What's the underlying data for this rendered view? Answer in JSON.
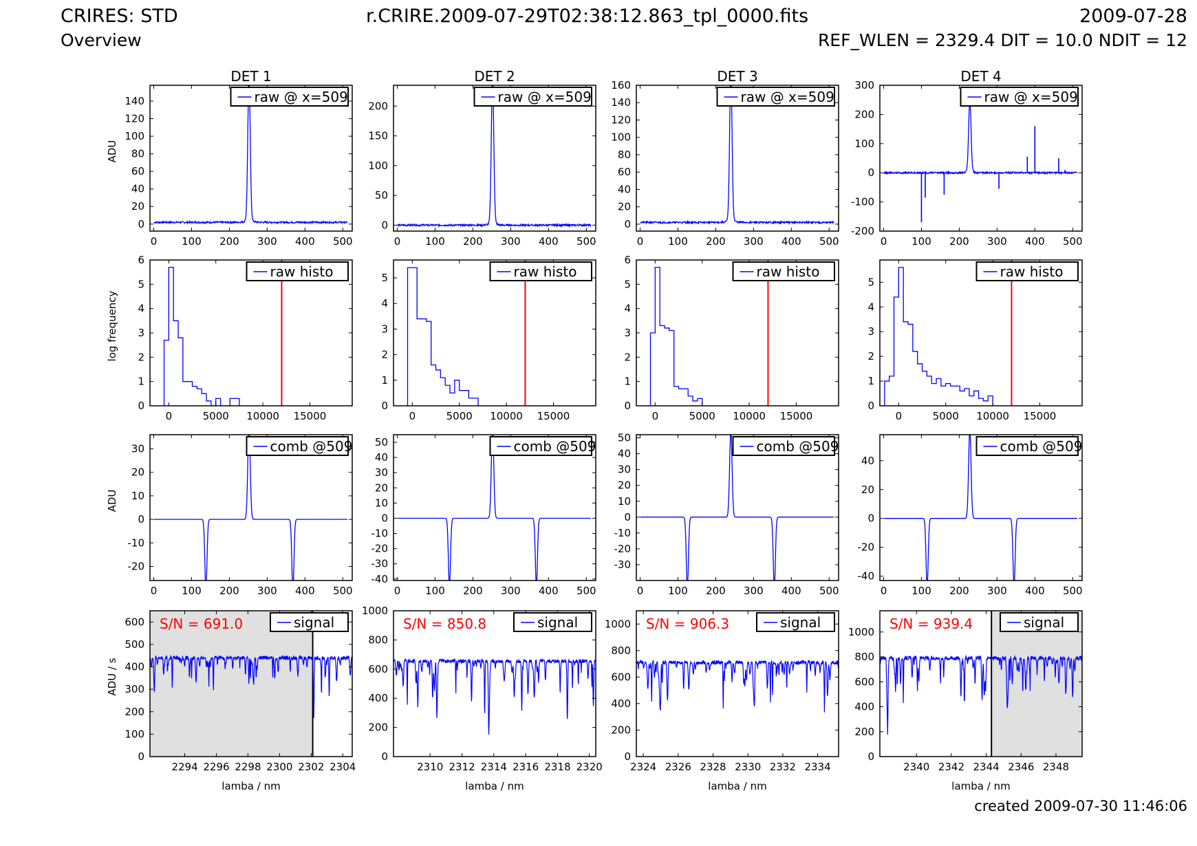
{
  "header": {
    "title": "CRIRES: STD",
    "subtitle": "Overview",
    "filename": "r.CRIRE.2009-07-29T02:38:12.863_tpl_0000.fits",
    "date": "2009-07-28",
    "params": "REF_WLEN = 2329.4 DIT = 10.0 NDIT = 12",
    "created": "created 2009-07-30 11:46:06"
  },
  "colors": {
    "series": "#0000ff",
    "marker": "#ff0000",
    "shade": "#e0e0e0",
    "sn_text": "#ff0000"
  },
  "chart_data": {
    "type": "line",
    "detectors": [
      "DET 1",
      "DET 2",
      "DET 3",
      "DET 4"
    ],
    "rows": [
      {
        "id": "raw",
        "ylabel": "ADU",
        "xlabel": "",
        "legend": "raw @ x=509",
        "xlim": [
          -10,
          525
        ],
        "xticks": [
          0,
          100,
          200,
          300,
          400,
          500
        ],
        "panels": [
          {
            "ylim": [
              -8,
              158
            ],
            "yticks": [
              0,
              20,
              40,
              60,
              80,
              100,
              120,
              140
            ],
            "peak_x": 252,
            "peak_y": 160,
            "baseline": 2
          },
          {
            "ylim": [
              -10,
              235
            ],
            "yticks": [
              0,
              50,
              100,
              150,
              200
            ],
            "peak_x": 252,
            "peak_y": 240,
            "baseline": 0
          },
          {
            "ylim": [
              -8,
              160
            ],
            "yticks": [
              0,
              20,
              40,
              60,
              80,
              100,
              120,
              140,
              160
            ],
            "peak_x": 240,
            "peak_y": 165,
            "baseline": 2
          },
          {
            "ylim": [
              -200,
              300
            ],
            "yticks": [
              -200,
              -100,
              0,
              100,
              200,
              300
            ],
            "peak_x": 228,
            "peak_y": 240,
            "baseline": 0,
            "spikes": [
              [
                100,
                -170
              ],
              [
                110,
                -85
              ],
              [
                160,
                -75
              ],
              [
                305,
                -55
              ],
              [
                380,
                55
              ],
              [
                400,
                160
              ],
              [
                463,
                50
              ],
              [
                480,
                10
              ]
            ]
          }
        ]
      },
      {
        "id": "histo",
        "ylabel": "log frequency",
        "xlabel": "",
        "legend": "raw histo",
        "xlim": [
          -2000,
          19500
        ],
        "xticks": [
          0,
          5000,
          10000,
          15000
        ],
        "marker_x": 12000,
        "panels": [
          {
            "ylim": [
              0,
              6
            ],
            "yticks": [
              0,
              1,
              2,
              3,
              4,
              5,
              6
            ],
            "edges": [
              -500,
              0,
              500,
              1000,
              1500,
              2000,
              2500,
              3000,
              3500,
              4000,
              4500,
              5000,
              5500,
              6000,
              6500,
              7000,
              7500
            ],
            "counts": [
              2.7,
              5.7,
              3.5,
              2.8,
              1.0,
              1.0,
              0.8,
              0.7,
              0.5,
              0.2,
              0.0,
              0.3,
              0.0,
              0.0,
              0.3,
              0.3
            ]
          },
          {
            "ylim": [
              0,
              5.7
            ],
            "yticks": [
              0,
              1,
              2,
              3,
              4,
              5
            ],
            "edges": [
              -500,
              0,
              500,
              1000,
              1500,
              2000,
              2500,
              3000,
              3500,
              4000,
              4500,
              5000,
              5500,
              6000,
              6500,
              7000
            ],
            "counts": [
              5.4,
              5.4,
              3.4,
              3.4,
              3.3,
              1.6,
              1.4,
              1.1,
              0.8,
              0.5,
              1.0,
              0.6,
              0.6,
              0.3,
              0.3
            ]
          },
          {
            "ylim": [
              0,
              6
            ],
            "yticks": [
              0,
              1,
              2,
              3,
              4,
              5,
              6
            ],
            "edges": [
              -500,
              0,
              500,
              1000,
              1500,
              2000,
              2500,
              3000,
              3500,
              4000,
              4500,
              5000
            ],
            "counts": [
              3.0,
              5.7,
              3.3,
              3.2,
              3.1,
              0.8,
              0.7,
              0.7,
              0.4,
              0.2,
              0.3
            ]
          },
          {
            "ylim": [
              0,
              5.9
            ],
            "yticks": [
              0,
              1,
              2,
              3,
              4,
              5
            ],
            "edges": [
              -1500,
              -1000,
              -500,
              0,
              500,
              1000,
              1500,
              2000,
              2500,
              3000,
              3500,
              4000,
              4500,
              5000,
              5500,
              6000,
              6500,
              7000,
              7500,
              8000,
              8500,
              9000,
              9500,
              10000
            ],
            "counts": [
              1.0,
              1.2,
              4.4,
              5.6,
              3.4,
              3.3,
              2.2,
              1.7,
              1.4,
              1.2,
              0.9,
              1.1,
              0.8,
              0.9,
              0.8,
              0.8,
              0.6,
              0.7,
              0.4,
              0.6,
              0.3,
              0.2,
              0.4
            ]
          }
        ]
      },
      {
        "id": "comb",
        "ylabel": "ADU",
        "xlabel": "",
        "legend": "comb @509",
        "xlim": [
          -10,
          525
        ],
        "xticks": [
          0,
          100,
          200,
          300,
          400,
          500
        ],
        "panels": [
          {
            "ylim": [
              -26,
              36
            ],
            "yticks": [
              -20,
              -10,
              0,
              10,
              20,
              30
            ],
            "peak_x": 252,
            "peak_y": 40,
            "dips": [
              138,
              368
            ],
            "dip_y": -30
          },
          {
            "ylim": [
              -41,
              55
            ],
            "yticks": [
              -40,
              -30,
              -20,
              -10,
              0,
              10,
              20,
              30,
              40,
              50
            ],
            "peak_x": 252,
            "peak_y": 60,
            "dips": [
              138,
              368
            ],
            "dip_y": -45
          },
          {
            "ylim": [
              -40,
              52
            ],
            "yticks": [
              -30,
              -20,
              -10,
              0,
              10,
              20,
              30,
              40,
              50
            ],
            "peak_x": 240,
            "peak_y": 55,
            "dips": [
              125,
              355
            ],
            "dip_y": -45
          },
          {
            "ylim": [
              -43,
              58
            ],
            "yticks": [
              -40,
              -20,
              0,
              20,
              40
            ],
            "peak_x": 228,
            "peak_y": 62,
            "dips": [
              115,
              345
            ],
            "dip_y": -48
          }
        ]
      },
      {
        "id": "signal",
        "ylabel": "ADU / s",
        "xlabel": "lamba / nm",
        "legend": "signal",
        "panels": [
          {
            "xlim": [
              2291.8,
              2304.6
            ],
            "xticks": [
              2294,
              2296,
              2298,
              2300,
              2302,
              2304
            ],
            "ylim": [
              0,
              650
            ],
            "yticks": [
              0,
              100,
              200,
              300,
              400,
              500,
              600
            ],
            "sn": "S/N = 691.0",
            "level": 440,
            "shade": [
              2291.8,
              2302.1
            ]
          },
          {
            "xlim": [
              2307.7,
              2320.4
            ],
            "xticks": [
              2310,
              2312,
              2314,
              2316,
              2318,
              2320
            ],
            "ylim": [
              0,
              1000
            ],
            "yticks": [
              0,
              200,
              400,
              600,
              800,
              1000
            ],
            "sn": "S/N = 850.8",
            "level": 655
          },
          {
            "xlim": [
              2323.6,
              2335.2
            ],
            "xticks": [
              2324,
              2326,
              2328,
              2330,
              2332,
              2334
            ],
            "ylim": [
              0,
              1100
            ],
            "yticks": [
              0,
              200,
              400,
              600,
              800,
              1000
            ],
            "sn": "S/N = 906.3",
            "level": 710
          },
          {
            "xlim": [
              2337.9,
              2349.5
            ],
            "xticks": [
              2340,
              2342,
              2344,
              2346,
              2348
            ],
            "ylim": [
              0,
              1170
            ],
            "yticks": [
              0,
              200,
              400,
              600,
              800,
              1000
            ],
            "sn": "S/N = 939.4",
            "level": 790,
            "shade": [
              2344.3,
              2349.5
            ]
          }
        ]
      }
    ]
  }
}
